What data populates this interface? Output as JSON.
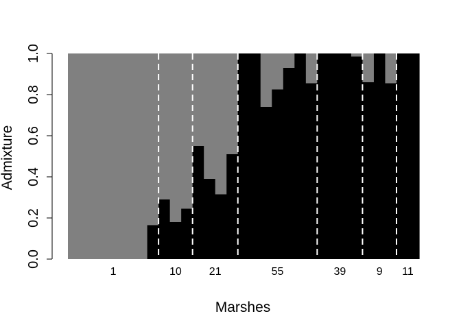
{
  "chart_data": {
    "type": "bar",
    "stacked": true,
    "xlabel": "Marshes",
    "ylabel": "Admixture",
    "ylim": [
      0,
      1
    ],
    "yticks": [
      "0.0",
      "0.2",
      "0.4",
      "0.6",
      "0.8",
      "1.0"
    ],
    "colors": {
      "component_black": "#000000",
      "component_gray": "#808080",
      "separator": "#ffffff"
    },
    "groups": [
      {
        "label": "1",
        "values": [
          0,
          0,
          0,
          0,
          0,
          0,
          0,
          0.165
        ]
      },
      {
        "label": "10",
        "values": [
          0.29,
          0.18,
          0.245
        ]
      },
      {
        "label": "21",
        "values": [
          0.55,
          0.39,
          0.315,
          0.51
        ]
      },
      {
        "label": "55",
        "values": [
          1.0,
          1.0,
          0.74,
          0.825,
          0.93,
          1.0,
          0.855
        ]
      },
      {
        "label": "39",
        "values": [
          1.0,
          1.0,
          1.0,
          0.985
        ]
      },
      {
        "label": "9",
        "values": [
          0.86,
          1.0,
          0.855
        ]
      },
      {
        "label": "11",
        "values": [
          1.0,
          1.0
        ]
      }
    ]
  }
}
